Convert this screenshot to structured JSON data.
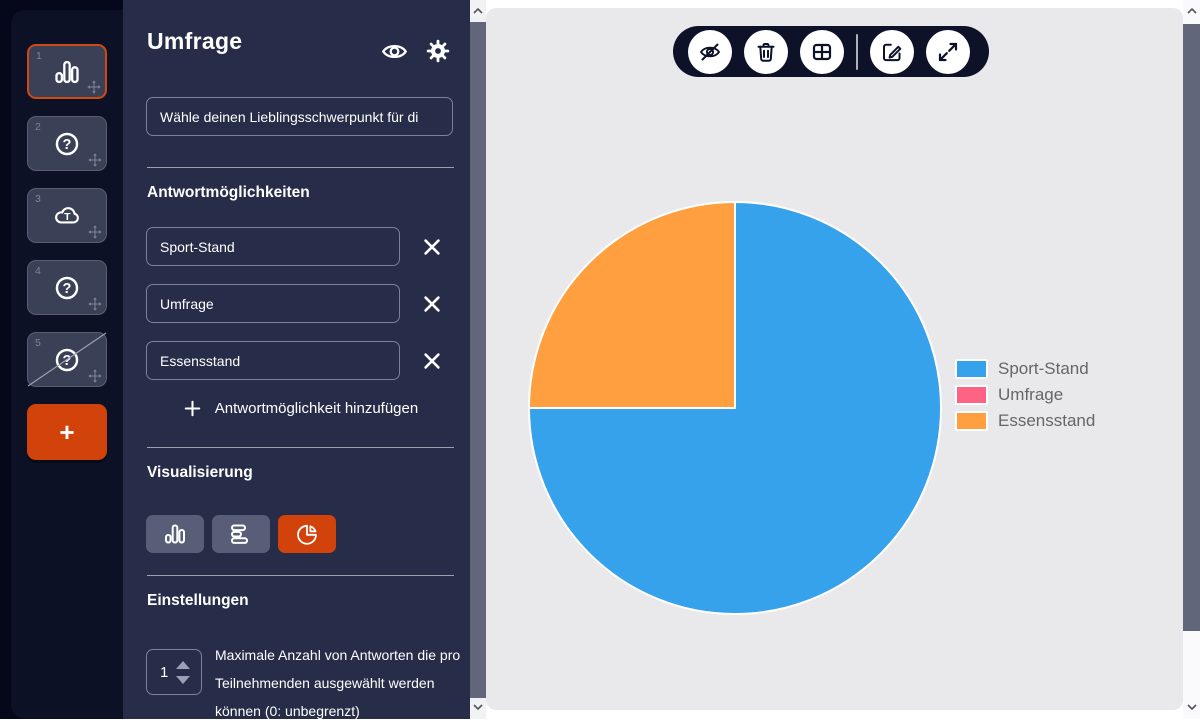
{
  "colors": {
    "accent_orange": "#d2430b",
    "panel_navy": "#272d48",
    "rail_navy": "#0c1126",
    "outer_dark": "#04081a",
    "toolbar_navy": "#0d1228",
    "canvas_gray": "#e9e9ec"
  },
  "sidebar": {
    "slides": [
      {
        "number": "1",
        "icon": "bar-chart",
        "selected": true,
        "hidden": false
      },
      {
        "number": "2",
        "icon": "question",
        "selected": false,
        "hidden": false
      },
      {
        "number": "3",
        "icon": "wordcloud",
        "selected": false,
        "hidden": false
      },
      {
        "number": "4",
        "icon": "question",
        "selected": false,
        "hidden": false
      },
      {
        "number": "5",
        "icon": "question",
        "selected": false,
        "hidden": true
      }
    ],
    "add_slide_label": "+"
  },
  "editor": {
    "title": "Umfrage",
    "question_input": {
      "value": "Wähle deinen Lieblingsschwerpunkt für di"
    },
    "answers_heading": "Antwortmöglichkeiten",
    "answers": [
      "Sport-Stand",
      "Umfrage",
      "Essensstand"
    ],
    "add_answer_label": "Antwortmöglichkeit hinzufügen",
    "visualization_heading": "Visualisierung",
    "viz_options": [
      {
        "icon": "bar-chart",
        "selected": false
      },
      {
        "icon": "horizontal-bars",
        "selected": false
      },
      {
        "icon": "pie-chart",
        "selected": true
      }
    ],
    "settings_heading": "Einstellungen",
    "max_answers_setting": {
      "value": "1",
      "label": "Maximale Anzahl von Antworten die pro Teilnehmenden ausgewählt werden können (0: unbegrenzt)"
    }
  },
  "toolbar": {
    "buttons": [
      {
        "icon": "eye-off"
      },
      {
        "icon": "trash"
      },
      {
        "icon": "table"
      },
      {
        "icon": "divider"
      },
      {
        "icon": "edit"
      },
      {
        "icon": "expand"
      }
    ]
  },
  "chart_data": {
    "type": "pie",
    "categories": [
      "Sport-Stand",
      "Umfrage",
      "Essensstand"
    ],
    "values_percent": [
      75,
      0,
      25
    ],
    "colors": [
      "#36A2EB",
      "#FF6384",
      "#FF9F40"
    ],
    "legend_position": "right",
    "slice_border_color": "#ffffff",
    "background": "#e9e9ec"
  }
}
